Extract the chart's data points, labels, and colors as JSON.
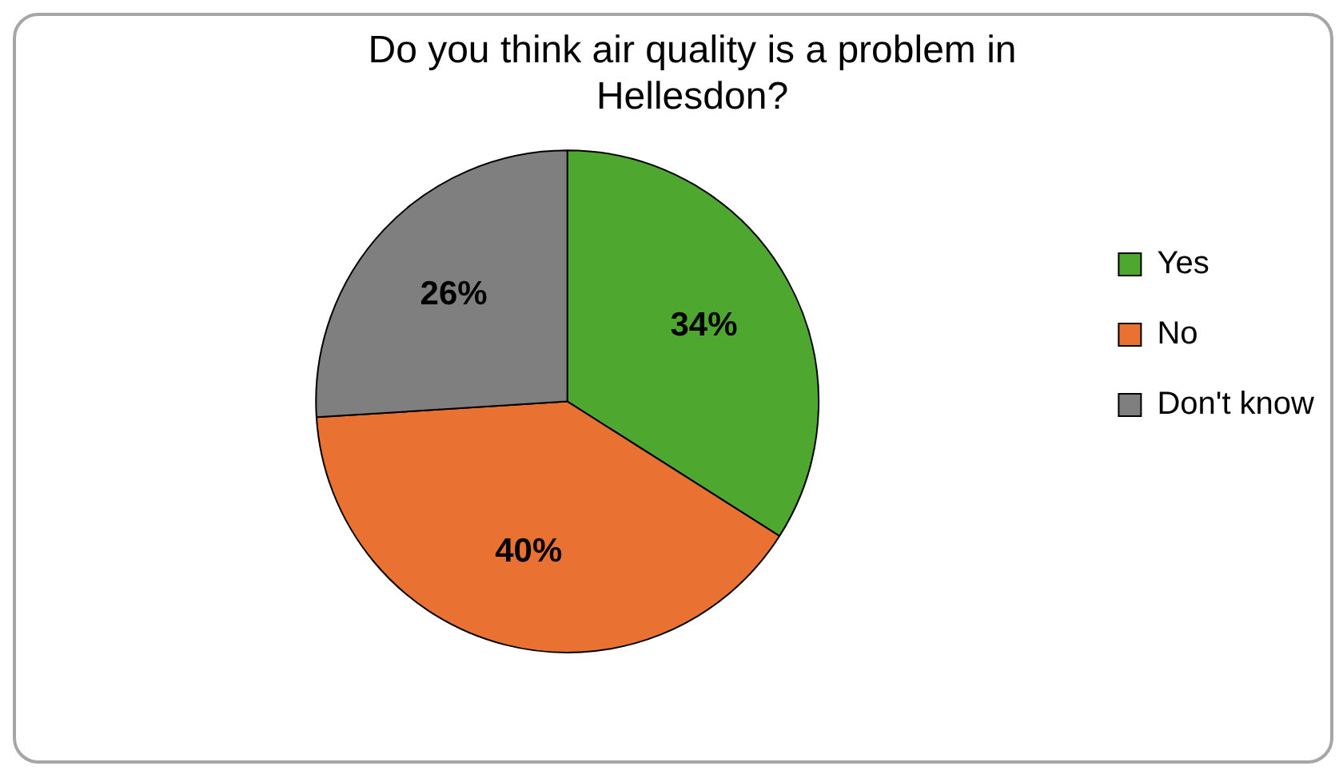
{
  "chart_data": {
    "type": "pie",
    "title": "Do you think air quality is a problem in Hellesdon?",
    "categories": [
      "Yes",
      "No",
      "Don't know"
    ],
    "values": [
      34,
      40,
      26
    ],
    "colors": [
      "#4ea72e",
      "#e97132",
      "#7f7f7f"
    ],
    "value_labels": [
      "34%",
      "40%",
      "26%"
    ],
    "legend": "right"
  }
}
